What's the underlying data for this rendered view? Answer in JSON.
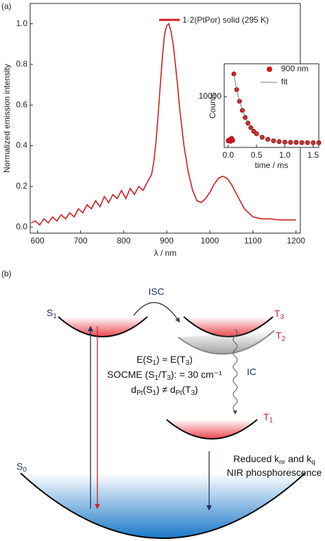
{
  "panels": [
    "(a)",
    "(b)"
  ],
  "chart_data": [
    {
      "type": "line",
      "x_label": "λ / nm",
      "y_label": "Normalized emission intensity",
      "xlim": [
        583,
        1210
      ],
      "ylim": [
        -0.03,
        1.1
      ],
      "xticks": [
        600,
        700,
        800,
        900,
        1000,
        1100,
        1200
      ],
      "yticks": [
        {
          "value": 0,
          "label": "0.0"
        },
        0.2,
        0.4,
        0.6,
        0.8,
        {
          "value": 1,
          "label": "1.0"
        }
      ],
      "x": [
        585,
        595,
        605,
        615,
        625,
        635,
        645,
        655,
        665,
        675,
        685,
        695,
        705,
        715,
        725,
        735,
        745,
        755,
        765,
        775,
        785,
        795,
        805,
        815,
        825,
        835,
        845,
        855,
        865,
        870,
        875,
        880,
        885,
        890,
        895,
        900,
        905,
        910,
        915,
        920,
        925,
        930,
        940,
        950,
        960,
        970,
        980,
        990,
        1000,
        1010,
        1020,
        1030,
        1040,
        1050,
        1060,
        1070,
        1080,
        1090,
        1100,
        1110,
        1120,
        1140,
        1160,
        1180,
        1200
      ],
      "series": [
        {
          "name": "1·2(PtPor) solid (295 K)",
          "color": "#d7191c",
          "values": [
            0.02,
            0.03,
            0.01,
            0.04,
            0.02,
            0.05,
            0.03,
            0.06,
            0.04,
            0.07,
            0.05,
            0.09,
            0.07,
            0.11,
            0.09,
            0.13,
            0.1,
            0.15,
            0.12,
            0.16,
            0.14,
            0.18,
            0.14,
            0.19,
            0.16,
            0.2,
            0.18,
            0.22,
            0.26,
            0.32,
            0.42,
            0.55,
            0.7,
            0.84,
            0.95,
            0.99,
            1.0,
            0.96,
            0.9,
            0.8,
            0.7,
            0.58,
            0.4,
            0.27,
            0.18,
            0.13,
            0.12,
            0.14,
            0.17,
            0.21,
            0.24,
            0.25,
            0.24,
            0.21,
            0.17,
            0.13,
            0.09,
            0.07,
            0.05,
            0.045,
            0.04,
            0.04,
            0.035,
            0.035,
            0.035
          ]
        }
      ]
    },
    {
      "type": "scatter",
      "x_label": "time / ms",
      "y_label": "Counts",
      "xlim": [
        -0.07,
        1.6
      ],
      "ylim": [
        0,
        16500
      ],
      "xticks": [
        {
          "value": 0,
          "label": "0.0"
        },
        0.5,
        {
          "value": 1,
          "label": "1.0"
        },
        1.5
      ],
      "yticks": [
        10000
      ],
      "series": [
        {
          "name": "900 nm",
          "color": "#d7191c",
          "type": "scatter",
          "x": [
            0,
            0.02,
            0.04,
            0.06,
            0.08,
            0.1,
            0.15,
            0.2,
            0.25,
            0.3,
            0.35,
            0.4,
            0.45,
            0.5,
            0.6,
            0.7,
            0.8,
            0.9,
            1.0,
            1.1,
            1.2,
            1.3,
            1.4,
            1.5,
            1.6
          ],
          "values": [
            1300,
            1500,
            1200,
            1800,
            1400,
            14500,
            11400,
            9100,
            7300,
            5900,
            4800,
            3900,
            3200,
            2700,
            2000,
            1600,
            1300,
            1150,
            1050,
            1000,
            1000,
            950,
            950,
            930,
            930
          ]
        },
        {
          "name": "fit",
          "color": "#777777",
          "type": "line",
          "x": [
            0.1,
            0.15,
            0.2,
            0.3,
            0.4,
            0.5,
            0.6,
            0.8,
            1.0,
            1.2,
            1.6
          ],
          "values": [
            14400,
            11400,
            9100,
            5900,
            3900,
            2700,
            2000,
            1300,
            1050,
            950,
            910
          ]
        }
      ]
    }
  ],
  "diagram": {
    "labels": [
      {
        "parts": [
          "ISC"
        ]
      },
      {
        "parts": [
          "S",
          "1"
        ]
      },
      {
        "parts": [
          "T",
          "3"
        ]
      },
      {
        "parts": [
          "T",
          "2"
        ]
      },
      {
        "parts": [
          "E(S",
          "1",
          ") ≈ E(T",
          "3",
          ")"
        ]
      },
      {
        "parts": [
          "SOCME (S",
          "1",
          "/T",
          "3",
          "): = 30 cm⁻¹"
        ]
      },
      {
        "parts": [
          "d",
          "Pt",
          "(S",
          "1",
          ") ≠ d",
          "Pt",
          "(T",
          "3",
          ")"
        ]
      },
      {
        "parts": [
          "IC"
        ]
      },
      {
        "parts": [
          "T",
          "1"
        ]
      },
      {
        "parts": [
          "Reduced k",
          "nr",
          " and k",
          "q"
        ]
      },
      {
        "parts": [
          "NIR phosphorescence"
        ]
      },
      {
        "parts": [
          "S",
          "0"
        ]
      }
    ]
  }
}
